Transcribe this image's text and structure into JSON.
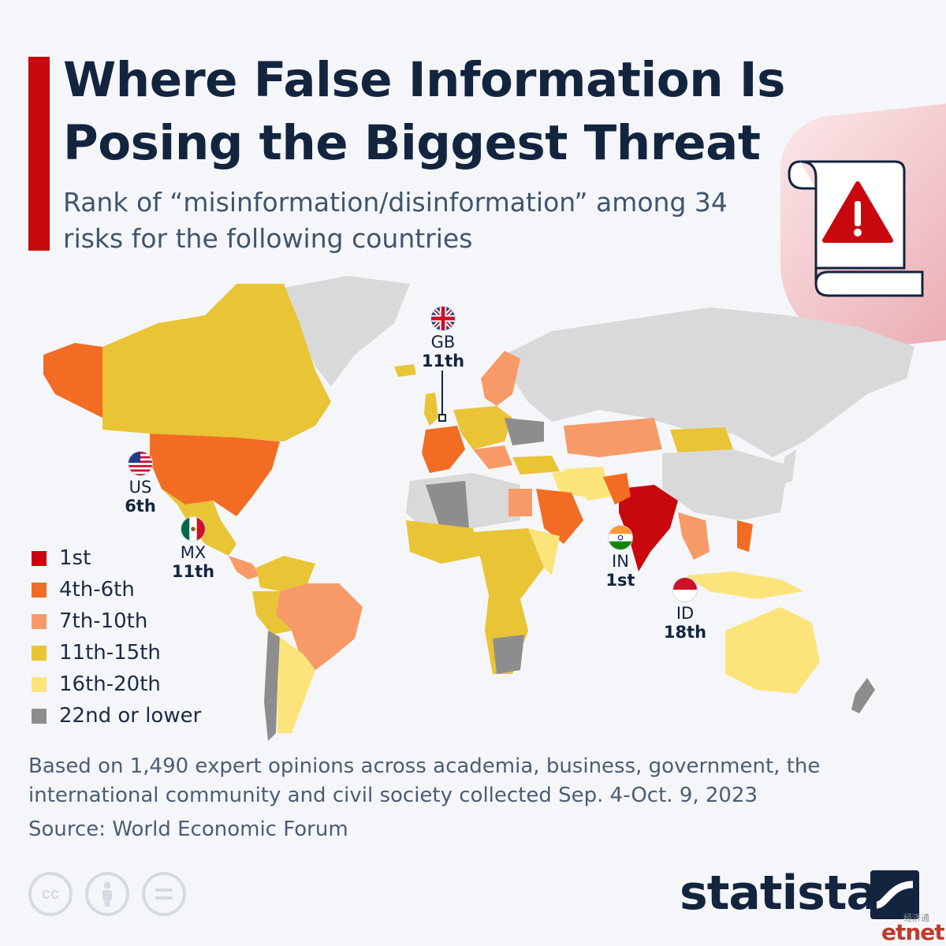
{
  "header": {
    "title": "Where False Information Is Posing the Biggest Threat",
    "subtitle": "Rank of “misinformation/disinformation” among 34 risks for the following countries"
  },
  "colors": {
    "accent": "#c8080e",
    "rank_1st": "#c8080e",
    "rank_4_6": "#f26d23",
    "rank_7_10": "#f79a68",
    "rank_11_15": "#e9c435",
    "rank_16_20": "#fde47a",
    "rank_22_lower": "#8d8d8d",
    "no_data": "#d9d9d9"
  },
  "legend": [
    {
      "label": "1st",
      "color": "#c8080e"
    },
    {
      "label": "4th-6th",
      "color": "#f26d23"
    },
    {
      "label": "7th-10th",
      "color": "#f79a68"
    },
    {
      "label": "11th-15th",
      "color": "#e9c435"
    },
    {
      "label": "16th-20th",
      "color": "#fde47a"
    },
    {
      "label": "22nd or lower",
      "color": "#8d8d8d"
    }
  ],
  "callouts": {
    "gb": {
      "code": "GB",
      "rank": "11th"
    },
    "us": {
      "code": "US",
      "rank": "6th"
    },
    "mx": {
      "code": "MX",
      "rank": "11th"
    },
    "in": {
      "code": "IN",
      "rank": "1st"
    },
    "id": {
      "code": "ID",
      "rank": "18th"
    }
  },
  "footer": {
    "notes": "Based on 1,490 expert opinions across academia, business, government, the international community and civil society collected Sep. 4-Oct. 9, 2023",
    "source": "Source: World Economic Forum",
    "license_icons": [
      "cc-icon",
      "attribution-icon",
      "no-derivatives-icon"
    ],
    "brand": "statista",
    "watermark_cn": "经济通",
    "watermark_net": "etnet"
  }
}
